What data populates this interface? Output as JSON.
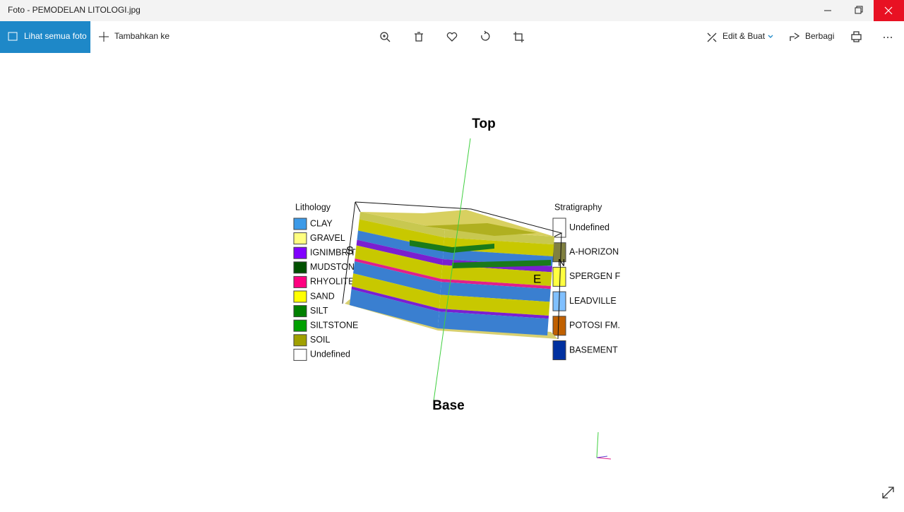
{
  "window": {
    "title": "Foto - PEMODELAN LITOLOGI.jpg"
  },
  "toolbar": {
    "view_all": "Lihat semua foto",
    "add_to": "Tambahkan ke",
    "edit_create": "Edit & Buat",
    "share": "Berbagi"
  },
  "image": {
    "top_label": "Top",
    "base_label": "Base",
    "direction_labels": [
      "S",
      "N",
      "E"
    ],
    "lithology": {
      "title": "Lithology",
      "items": [
        {
          "label": "CLAY",
          "color": "#3c9ae8"
        },
        {
          "label": "GRAVEL",
          "color": "#ffff80"
        },
        {
          "label": "IGNIMBRITE",
          "color": "#8000ff"
        },
        {
          "label": "MUDSTONE",
          "color": "#005000"
        },
        {
          "label": "RHYOLITE",
          "color": "#ff0080"
        },
        {
          "label": "SAND",
          "color": "#ffff00"
        },
        {
          "label": "SILT",
          "color": "#008000"
        },
        {
          "label": "SILTSTONE",
          "color": "#00a000"
        },
        {
          "label": "SOIL",
          "color": "#a0a000"
        },
        {
          "label": "Undefined",
          "color": "#ffffff"
        }
      ]
    },
    "stratigraphy": {
      "title": "Stratigraphy",
      "items": [
        {
          "label": "Undefined",
          "color": "#ffffff"
        },
        {
          "label": "A-HORIZON",
          "color": "#808040"
        },
        {
          "label": "SPERGEN F",
          "color": "#ffff40"
        },
        {
          "label": "LEADVILLE",
          "color": "#80c0ff"
        },
        {
          "label": "POTOSI FM.",
          "color": "#c06000"
        },
        {
          "label": "BASEMENT",
          "color": "#0030a0"
        }
      ]
    }
  }
}
